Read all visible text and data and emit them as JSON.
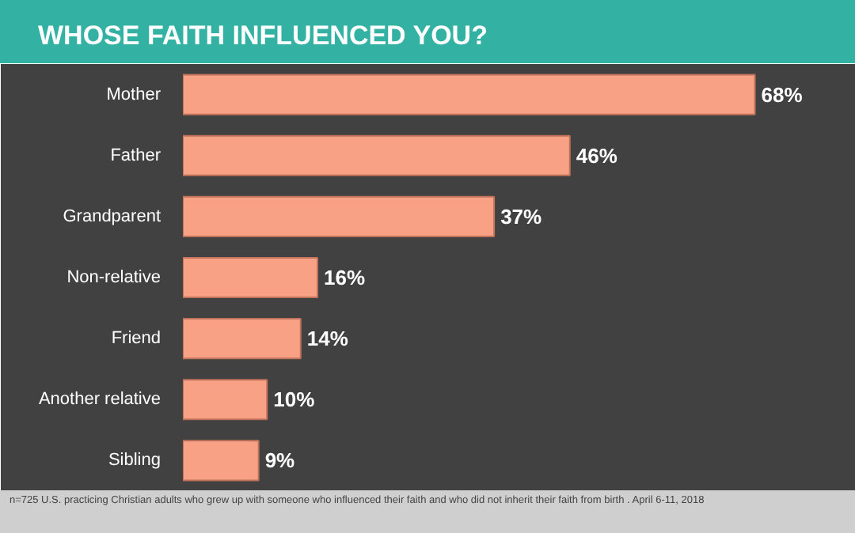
{
  "chart_data": {
    "type": "bar",
    "orientation": "horizontal",
    "title": "WHOSE FAITH INFLUENCED YOU?",
    "categories": [
      "Mother",
      "Father",
      "Grandparent",
      "Non-relative",
      "Friend",
      "Another relative",
      "Sibling"
    ],
    "values": [
      68,
      46,
      37,
      16,
      14,
      10,
      9
    ],
    "value_labels": [
      "68%",
      "46%",
      "37%",
      "16%",
      "14%",
      "10%",
      "9%"
    ],
    "color": "#f9a184",
    "xlim": [
      0,
      80
    ],
    "grid": false,
    "annotations": [
      "n=725 U.S. practicing Christian adults who grew up with someone who influenced their faith and who did not inherit their faith from birth . April 6-11, 2018"
    ]
  }
}
